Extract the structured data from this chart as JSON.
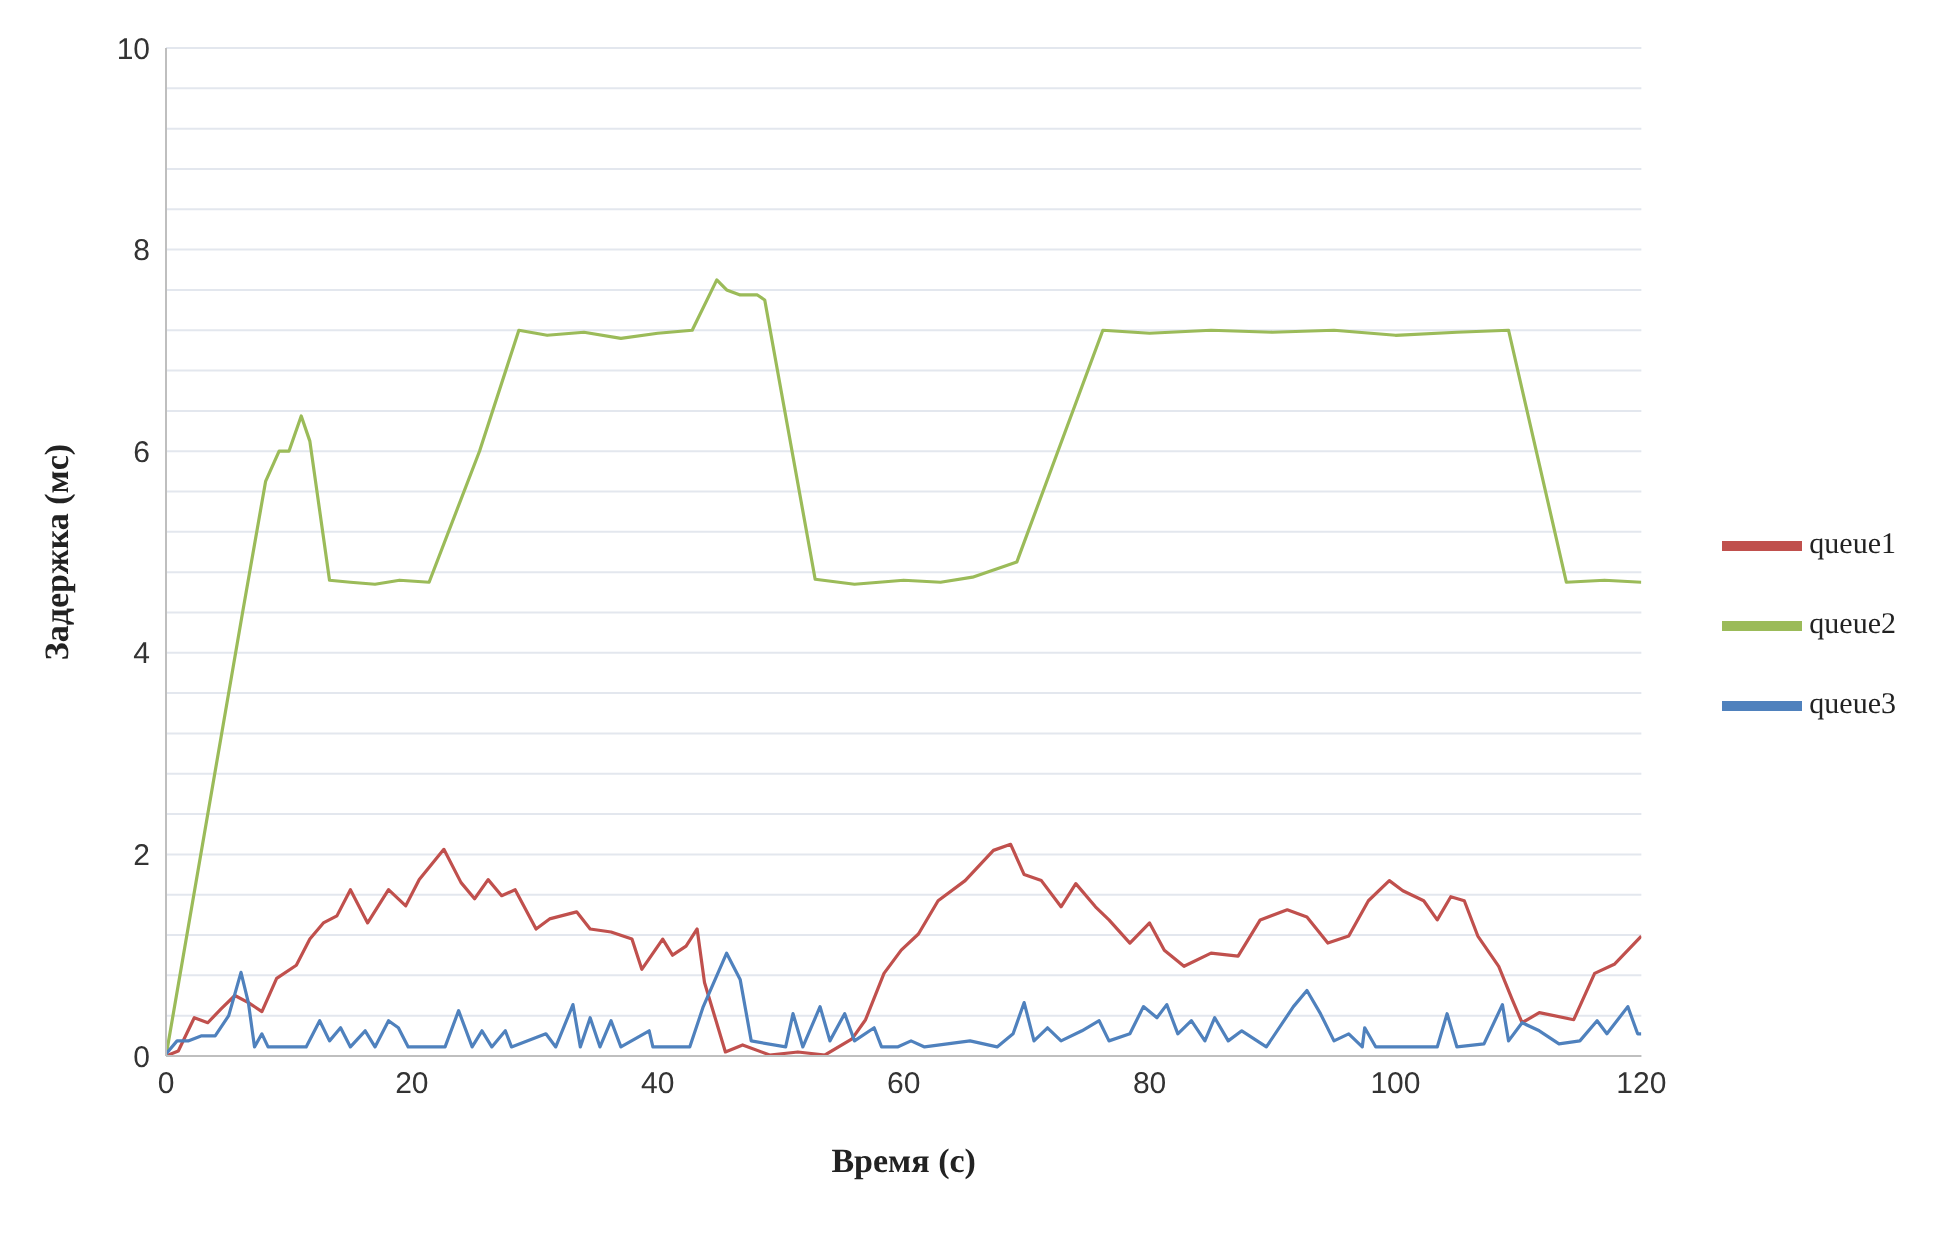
{
  "chart_data": {
    "type": "line",
    "xlabel": "Время (с)",
    "ylabel": "Задержка (мс)",
    "xlim": [
      0,
      120
    ],
    "xticks": [
      0,
      20,
      40,
      60,
      80,
      100,
      120
    ],
    "ylim": [
      0,
      10
    ],
    "yticks": [
      0,
      {
        "value": 0.4,
        "label": null
      },
      {
        "value": 0.8,
        "label": null
      },
      {
        "value": 1.2,
        "label": null
      },
      {
        "value": 1.6,
        "label": null
      },
      2,
      {
        "value": 2.4,
        "label": null
      },
      {
        "value": 2.8,
        "label": null
      },
      {
        "value": 3.2,
        "label": null
      },
      {
        "value": 3.6,
        "label": null
      },
      4,
      {
        "value": 4.4,
        "label": null
      },
      {
        "value": 4.8,
        "label": null
      },
      {
        "value": 5.2,
        "label": null
      },
      {
        "value": 5.6,
        "label": null
      },
      6,
      {
        "value": 6.4,
        "label": null
      },
      {
        "value": 6.8,
        "label": null
      },
      {
        "value": 7.2,
        "label": null
      },
      {
        "value": 7.6,
        "label": null
      },
      8,
      {
        "value": 8.4,
        "label": null
      },
      {
        "value": 8.8,
        "label": null
      },
      {
        "value": 9.2,
        "label": null
      },
      {
        "value": 9.6,
        "label": null
      },
      10
    ],
    "grid": "y",
    "legend": "right",
    "marker": "none",
    "line_style": "solid",
    "series": [
      {
        "name": "queue1",
        "color": "#c0504d",
        "x": [
          0,
          1,
          2.3,
          3.4,
          4.5,
          5.6,
          6.7,
          7.8,
          9,
          10.6,
          11.7,
          12.8,
          13.9,
          15,
          16.4,
          18.1,
          19.5,
          20.6,
          22.6,
          24,
          25.1,
          26.2,
          27.3,
          28.4,
          30.1,
          31.2,
          33.4,
          34.5,
          36.2,
          37.9,
          38.7,
          40.4,
          41.2,
          42.3,
          43.2,
          43.8,
          45.5,
          46.9,
          49.1,
          51.4,
          53.6,
          55.8,
          56.9,
          58.4,
          59.8,
          61.2,
          62.8,
          65,
          67.3,
          68.7,
          69.8,
          71.2,
          72.8,
          74,
          75.6,
          76.7,
          78.4,
          80,
          81.2,
          82.8,
          85,
          87.2,
          89,
          91.2,
          92.8,
          94.5,
          96.2,
          97.8,
          99.5,
          100.6,
          102.3,
          103.4,
          104.5,
          105.6,
          106.7,
          108.4,
          109.5,
          110.3,
          111.7,
          114.5,
          116.2,
          117.8,
          120
        ],
        "values": [
          0,
          0.05,
          0.38,
          0.33,
          0.47,
          0.6,
          0.53,
          0.44,
          0.77,
          0.9,
          1.16,
          1.32,
          1.39,
          1.65,
          1.32,
          1.65,
          1.49,
          1.75,
          2.05,
          1.72,
          1.56,
          1.75,
          1.59,
          1.65,
          1.26,
          1.36,
          1.43,
          1.26,
          1.23,
          1.16,
          0.86,
          1.16,
          1,
          1.09,
          1.26,
          0.73,
          0.04,
          0.11,
          0.01,
          0.04,
          0.01,
          0.17,
          0.36,
          0.82,
          1.05,
          1.21,
          1.54,
          1.74,
          2.04,
          2.1,
          1.8,
          1.74,
          1.48,
          1.71,
          1.48,
          1.35,
          1.12,
          1.32,
          1.05,
          0.89,
          1.02,
          0.99,
          1.35,
          1.45,
          1.38,
          1.12,
          1.19,
          1.54,
          1.74,
          1.64,
          1.54,
          1.35,
          1.58,
          1.54,
          1.19,
          0.89,
          0.56,
          0.33,
          0.43,
          0.36,
          0.82,
          0.91,
          1.19
        ]
      },
      {
        "name": "queue2",
        "color": "#9bbb59",
        "x": [
          0,
          6.2,
          8.1,
          9.2,
          10,
          11,
          11.7,
          13.3,
          15,
          17,
          19,
          21.4,
          25.5,
          28.7,
          31,
          34,
          37,
          40,
          42.8,
          44.8,
          45.6,
          46.7,
          48.1,
          48.7,
          52.8,
          56,
          60,
          63,
          65.6,
          69.2,
          76.2,
          80,
          85,
          90,
          95,
          100,
          105,
          109.2,
          113.9,
          117,
          120
        ],
        "values": [
          0,
          4.38,
          5.7,
          6,
          6,
          6.35,
          6.1,
          4.72,
          4.7,
          4.68,
          4.72,
          4.7,
          6,
          7.2,
          7.15,
          7.18,
          7.12,
          7.17,
          7.2,
          7.7,
          7.6,
          7.55,
          7.55,
          7.5,
          4.73,
          4.68,
          4.72,
          4.7,
          4.75,
          4.9,
          7.2,
          7.17,
          7.2,
          7.18,
          7.2,
          7.15,
          7.18,
          7.2,
          4.7,
          4.72,
          4.7
        ]
      },
      {
        "name": "queue3",
        "color": "#4f81bd",
        "x": [
          0,
          0.9,
          1.8,
          2.9,
          4,
          5.1,
          6.1,
          6.7,
          7.2,
          7.8,
          8.3,
          11.4,
          12.5,
          13.3,
          14.2,
          15,
          16.2,
          17,
          18.1,
          18.9,
          19.7,
          22.7,
          23.8,
          24.9,
          25.7,
          26.5,
          27.6,
          28.1,
          30.9,
          31.7,
          33.1,
          33.7,
          34.5,
          35.3,
          36.2,
          37,
          39.3,
          39.6,
          42.6,
          43.7,
          45.6,
          46.7,
          47.6,
          50.4,
          51,
          51.8,
          53.2,
          54,
          55.2,
          56,
          57.6,
          58.2,
          59.5,
          60.6,
          61.7,
          65.4,
          67.6,
          68.9,
          69.8,
          70.6,
          71.7,
          72.8,
          74.5,
          75.9,
          76.7,
          78.4,
          79.5,
          80.6,
          81.4,
          82.3,
          83.4,
          84.5,
          85.3,
          86.4,
          87.5,
          89.5,
          91.7,
          92.8,
          93.9,
          95,
          96.2,
          97.3,
          97.5,
          98.4,
          103.4,
          104.2,
          105,
          107.2,
          108.7,
          109.2,
          110.3,
          111.7,
          113.3,
          115,
          116.4,
          117.2,
          118.9,
          119.7,
          120
        ],
        "values": [
          0.02,
          0.15,
          0.15,
          0.2,
          0.2,
          0.4,
          0.83,
          0.53,
          0.09,
          0.22,
          0.09,
          0.09,
          0.35,
          0.15,
          0.28,
          0.09,
          0.25,
          0.09,
          0.35,
          0.28,
          0.09,
          0.09,
          0.45,
          0.09,
          0.25,
          0.09,
          0.25,
          0.09,
          0.22,
          0.09,
          0.51,
          0.09,
          0.38,
          0.09,
          0.35,
          0.09,
          0.25,
          0.09,
          0.09,
          0.49,
          1.02,
          0.76,
          0.15,
          0.09,
          0.42,
          0.09,
          0.49,
          0.15,
          0.42,
          0.15,
          0.28,
          0.09,
          0.09,
          0.15,
          0.09,
          0.15,
          0.09,
          0.22,
          0.53,
          0.15,
          0.28,
          0.15,
          0.25,
          0.35,
          0.15,
          0.22,
          0.49,
          0.38,
          0.51,
          0.22,
          0.35,
          0.15,
          0.38,
          0.15,
          0.25,
          0.09,
          0.49,
          0.65,
          0.42,
          0.15,
          0.22,
          0.09,
          0.28,
          0.09,
          0.09,
          0.42,
          0.09,
          0.12,
          0.51,
          0.15,
          0.33,
          0.25,
          0.12,
          0.15,
          0.35,
          0.22,
          0.49,
          0.22,
          0.22
        ]
      }
    ]
  }
}
